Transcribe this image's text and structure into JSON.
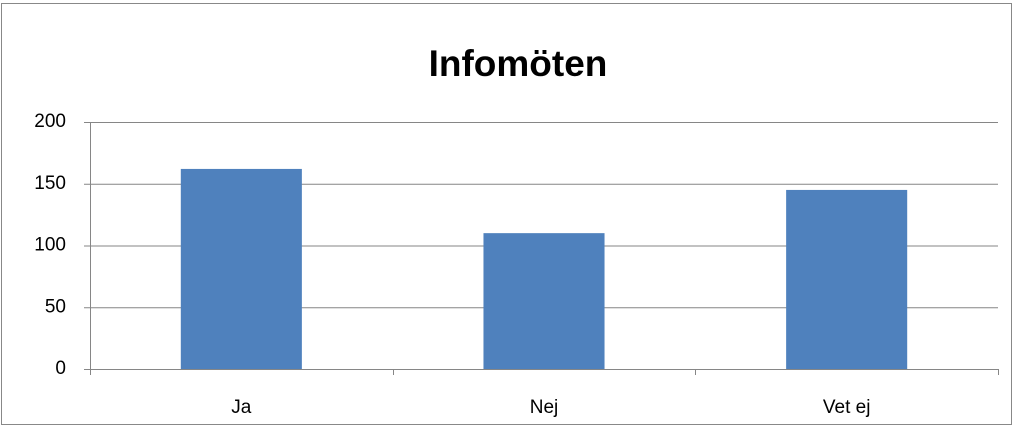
{
  "chart_data": {
    "type": "bar",
    "title": "Infomöten",
    "categories": [
      "Ja",
      "Nej",
      "Vet ej"
    ],
    "values": [
      162,
      110,
      145
    ],
    "color": "#4f81bd",
    "ylim": [
      0,
      200
    ],
    "yticks": [
      0,
      50,
      100,
      150,
      200
    ],
    "grid": true
  }
}
